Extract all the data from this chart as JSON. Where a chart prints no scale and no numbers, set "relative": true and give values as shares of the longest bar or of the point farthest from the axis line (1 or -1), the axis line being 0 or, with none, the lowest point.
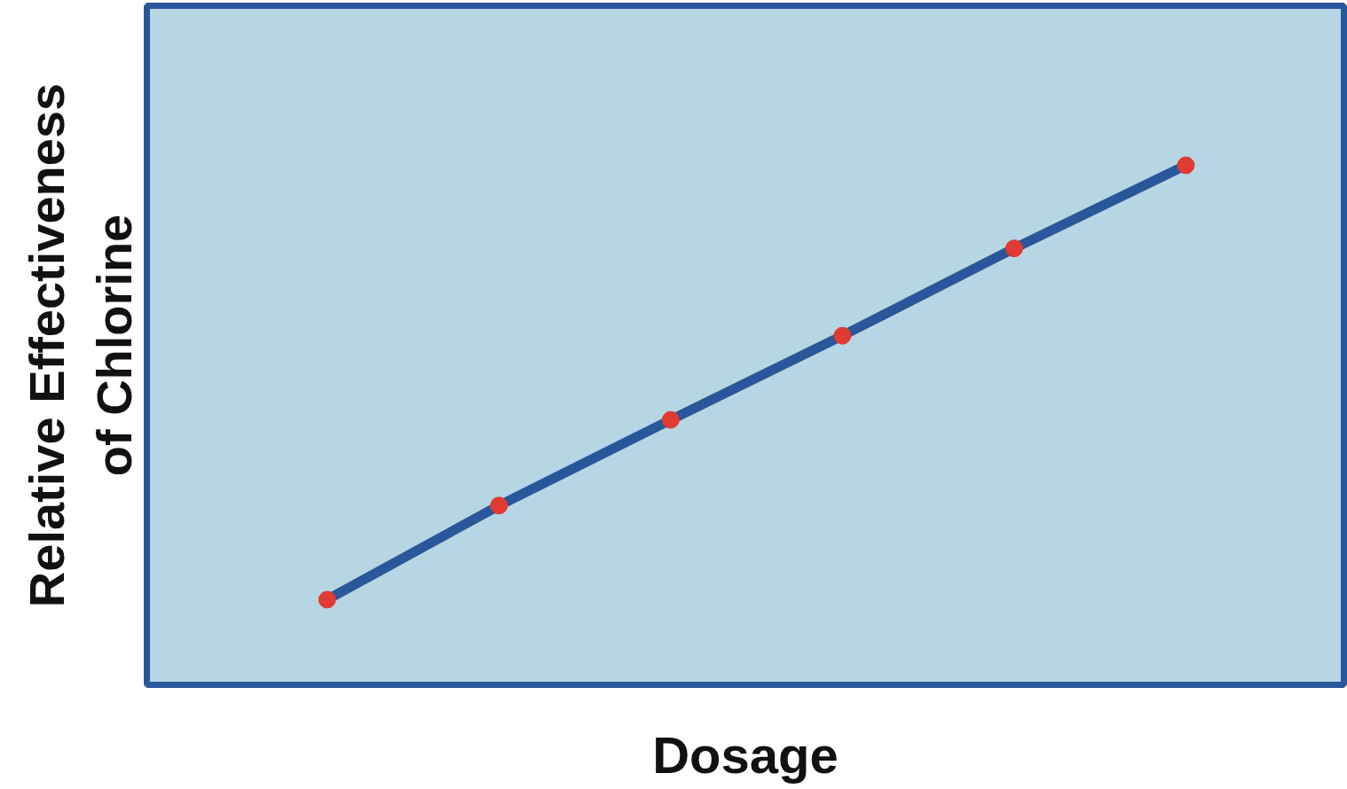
{
  "chart_data": {
    "type": "line",
    "relative": true,
    "xlabel": "Dosage",
    "ylabel": "Relative Effectiveness\nof Chlorine",
    "categories": [
      null,
      null,
      null,
      null,
      null,
      null
    ],
    "series": [
      {
        "color": "#2a579a",
        "colors": [
          "#e03a33",
          "#e03a33",
          "#e03a33",
          "#e03a33",
          "#e03a33",
          "#e03a33"
        ],
        "values": [
          0.164,
          0.345,
          0.51,
          0.672,
          0.84,
          1.0
        ]
      }
    ],
    "marker": "circle",
    "line_style": "solid",
    "grid": false
  }
}
